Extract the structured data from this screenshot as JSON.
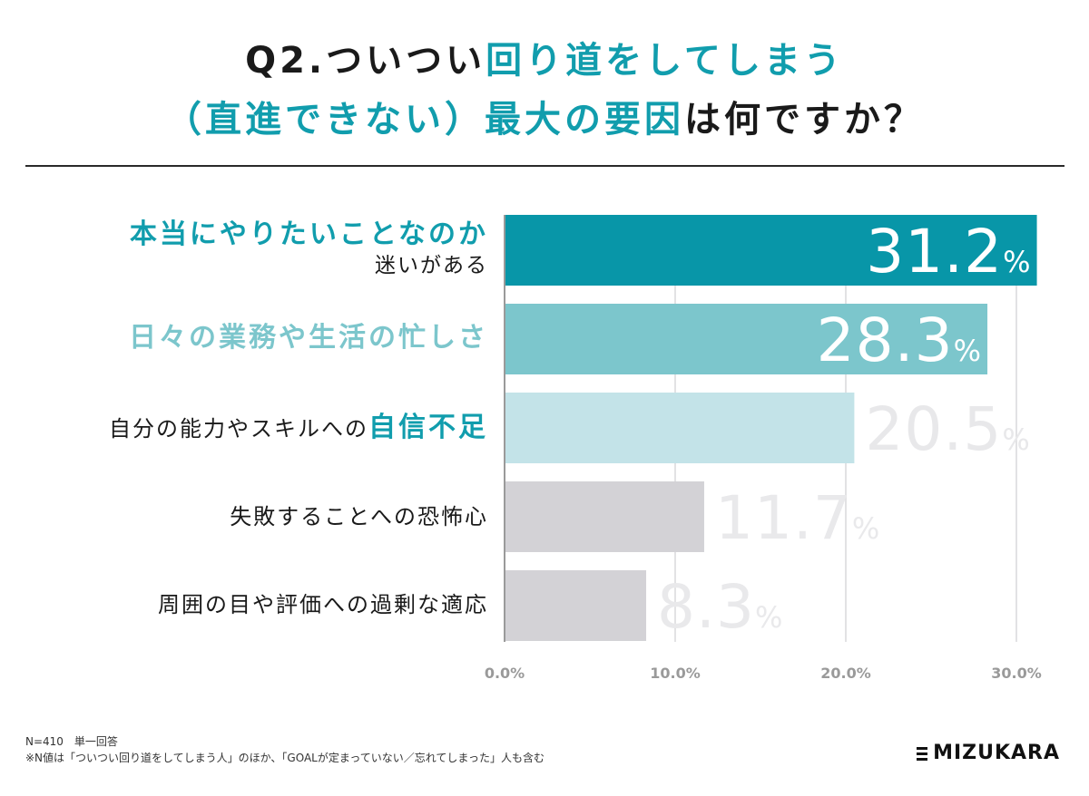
{
  "title": {
    "line1_prefix": "Q2.ついつい",
    "line1_accent": "回り道をしてしまう",
    "line2_accent": "（直進できない）最大の要因",
    "line2_suffix": "は何ですか？"
  },
  "chart_data": {
    "type": "bar",
    "orientation": "horizontal",
    "categories": [
      "本当にやりたいことなのか 迷いがある",
      "日々の業務や生活の忙しさ",
      "自分の能力やスキルへの自信不足",
      "失敗することへの恐怖心",
      "周囲の目や評価への過剰な適応"
    ],
    "values": [
      31.2,
      28.3,
      20.5,
      11.7,
      8.3
    ],
    "value_labels": [
      "31.2",
      "28.3",
      "20.5",
      "11.7",
      "8.3"
    ],
    "value_unit": "%",
    "xlim": [
      0,
      30
    ],
    "xticks": [
      "0.0%",
      "10.0%",
      "20.0%",
      "30.0%"
    ],
    "grid": true,
    "bar_colors": [
      "#0896a8",
      "#7cc6cc",
      "#c3e3e8",
      "#d3d2d6",
      "#d3d2d6"
    ],
    "label_colors": [
      "#ffffff",
      "#ffffff",
      "#e8e8ea",
      "#e9e9eb",
      "#e9e9eb"
    ]
  },
  "labels": {
    "row1_main": "本当にやりたいことなのか",
    "row1_sub": "迷いがある",
    "row2_main": "日々の業務や生活の忙しさ",
    "row3_prefix": "自分の能力やスキルへの",
    "row3_accent": "自信不足",
    "row4": "失敗することへの恐怖心",
    "row5": "周囲の目や評価への過剰な適応"
  },
  "footnote": {
    "line1": "N=410　単一回答",
    "line2": "※N値は「ついつい回り道をしてしまう人」のほか、「GOALが定まっていない／忘れてしまった」人も含む"
  },
  "logo": {
    "text": "MIZUKARA"
  },
  "colors": {
    "accent": "#119dad",
    "accent_light": "#7cc6cc"
  }
}
